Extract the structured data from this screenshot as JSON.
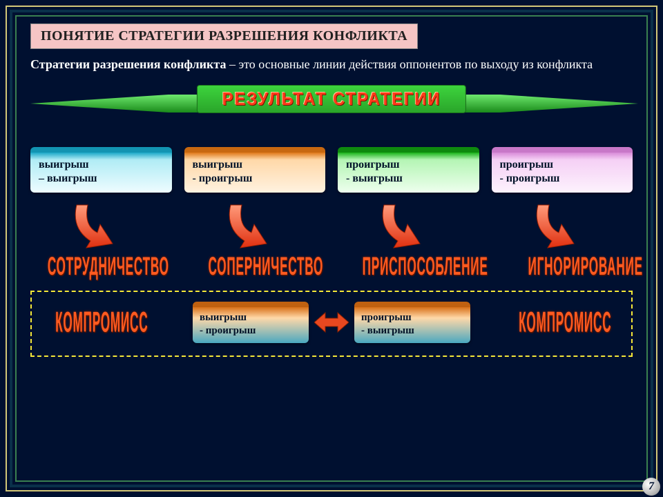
{
  "page_number": "7",
  "title": "ПОНЯТИЕ СТРАТЕГИИ РАЗРЕШЕНИЯ  КОНФЛИКТА",
  "definition_bold": "Стратегии разрешения конфликта",
  "definition_rest": " – это основные линии действия оппонентов по выходу из конфликта",
  "banner": "РЕЗУЛЬТАТ СТРАТЕГИИ",
  "strategies": [
    {
      "line1": "выигрыш",
      "line2": "– выигрыш",
      "color_class": "sb-cyan",
      "result": "СОТРУДНИЧЕСТВО"
    },
    {
      "line1": "выигрыш",
      "line2": "- проигрыш",
      "color_class": "sb-orange",
      "result": "СОПЕРНИЧЕСТВО"
    },
    {
      "line1": "проигрыш",
      "line2": "- выигрыш",
      "color_class": "sb-green",
      "result": "ПРИСПОСОБЛЕНИЕ"
    },
    {
      "line1": "проигрыш",
      "line2": "- проигрыш",
      "color_class": "sb-pink",
      "result": "ИГНОРИРОВАНИЕ"
    }
  ],
  "compromise_label": "КОМПРОМИСС",
  "compromise_left": {
    "line1": "выигрыш",
    "line2": "- проигрыш"
  },
  "compromise_right": {
    "line1": "проигрыш",
    "line2": "- выигрыш"
  },
  "colors": {
    "background": "#001030",
    "outer_border": "#d4c878",
    "mid_border": "#0a304a",
    "inner_border": "#3a8050",
    "title_bg": "#f5c5c5",
    "dash_border": "#f5e838",
    "arrow_fill_top": "#ff9a7a",
    "arrow_fill_bot": "#e03010",
    "bidir_arrow": "#e84820",
    "banner_green1": "#3dd43d",
    "banner_green2": "#2aa52a",
    "banner_text": "#ff3a1a"
  }
}
